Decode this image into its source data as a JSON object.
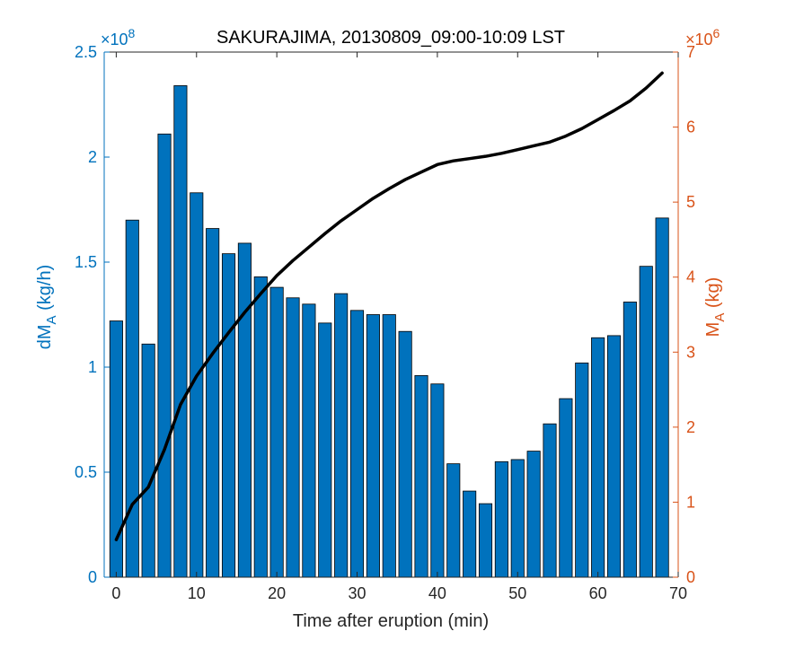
{
  "chart_data": {
    "type": "bar",
    "title": "SAKURAJIMA, 20130809_09:00-10:09 LST",
    "xlabel": "Time after eruption (min)",
    "ylabel_left": {
      "main": "dM",
      "sub": "A",
      "unit": " (kg/h)"
    },
    "ylabel_right": {
      "main": "M",
      "sub": "A",
      "unit": " (kg)"
    },
    "left_exponent": {
      "base": "×10",
      "power": "8"
    },
    "right_exponent": {
      "base": "×10",
      "power": "6"
    },
    "xlim": [
      -1.5,
      70
    ],
    "ylim_left": [
      0,
      2.5
    ],
    "ylim_right": [
      0,
      7
    ],
    "x_ticks": [
      0,
      10,
      20,
      30,
      40,
      50,
      60,
      70
    ],
    "left_ticks": [
      0,
      0.5,
      1,
      1.5,
      2,
      2.5
    ],
    "right_ticks": [
      0,
      1,
      2,
      3,
      4,
      5,
      6,
      7
    ],
    "left_tick_labels": [
      "0",
      "0.5",
      "1",
      "1.5",
      "2",
      "2.5"
    ],
    "right_tick_labels": [
      "0",
      "1",
      "2",
      "3",
      "4",
      "5",
      "6",
      "7"
    ],
    "x_tick_labels": [
      "0",
      "10",
      "20",
      "30",
      "40",
      "50",
      "60",
      "70"
    ],
    "bars": {
      "x": [
        0,
        2,
        4,
        6,
        8,
        10,
        12,
        14,
        16,
        18,
        20,
        22,
        24,
        26,
        28,
        30,
        32,
        34,
        36,
        38,
        40,
        42,
        44,
        46,
        48,
        50,
        52,
        54,
        56,
        58,
        60,
        62,
        64,
        66,
        68
      ],
      "values": [
        1.22,
        1.7,
        1.11,
        2.11,
        2.34,
        1.83,
        1.66,
        1.54,
        1.59,
        1.43,
        1.38,
        1.33,
        1.3,
        1.21,
        1.35,
        1.27,
        1.25,
        1.25,
        1.17,
        0.96,
        0.92,
        0.54,
        0.41,
        0.35,
        0.55,
        0.56,
        0.6,
        0.73,
        0.85,
        1.02,
        1.14,
        1.15,
        1.31,
        1.48,
        1.71
      ],
      "width": 1.6,
      "color": "#0072BD",
      "edge": "#000000"
    },
    "line": {
      "x": [
        0,
        2,
        4,
        6,
        8,
        10,
        12,
        14,
        16,
        18,
        20,
        22,
        24,
        26,
        28,
        30,
        32,
        34,
        36,
        38,
        40,
        42,
        44,
        46,
        48,
        50,
        52,
        54,
        56,
        58,
        60,
        62,
        64,
        66,
        68
      ],
      "values": [
        0.5,
        0.97,
        1.2,
        1.7,
        2.3,
        2.68,
        2.98,
        3.26,
        3.53,
        3.78,
        4.02,
        4.22,
        4.4,
        4.58,
        4.75,
        4.9,
        5.05,
        5.18,
        5.3,
        5.4,
        5.5,
        5.55,
        5.58,
        5.61,
        5.65,
        5.7,
        5.75,
        5.8,
        5.88,
        5.98,
        6.1,
        6.22,
        6.35,
        6.52,
        6.72
      ],
      "color": "#000000"
    },
    "colors": {
      "left_axis": "#0072BD",
      "right_axis": "#D95319",
      "frame": "#262626"
    }
  }
}
